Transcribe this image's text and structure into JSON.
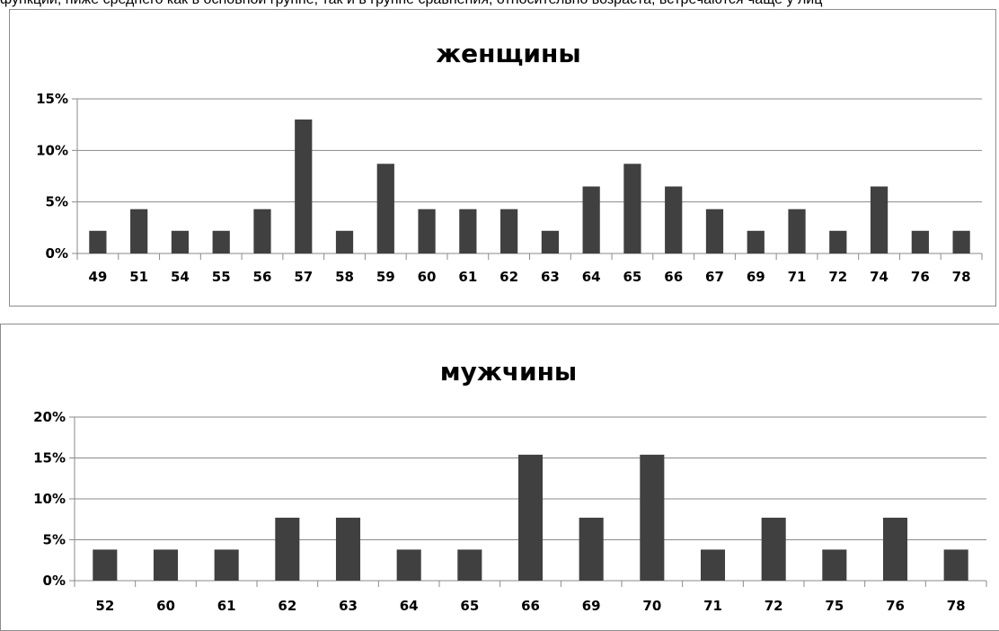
{
  "page": {
    "top_text": "функций, ниже среднего как в основной группе, так и в группе сравнения, относительно возраста, встречаются чаще у лиц"
  },
  "chart_data": [
    {
      "type": "bar",
      "title": "женщины",
      "xlabel": "",
      "ylabel": "",
      "ylim": [
        0,
        15
      ],
      "yticks": [
        "0%",
        "5%",
        "10%",
        "15%"
      ],
      "ytick_values": [
        0,
        5,
        10,
        15
      ],
      "grid": true,
      "categories": [
        "49",
        "51",
        "54",
        "55",
        "56",
        "57",
        "58",
        "59",
        "60",
        "61",
        "62",
        "63",
        "64",
        "65",
        "66",
        "67",
        "69",
        "71",
        "72",
        "74",
        "76",
        "78"
      ],
      "values": [
        2.2,
        4.3,
        2.2,
        2.2,
        4.3,
        13.0,
        2.2,
        8.7,
        4.3,
        4.3,
        4.3,
        2.2,
        6.5,
        8.7,
        6.5,
        4.3,
        2.2,
        4.3,
        2.2,
        6.5,
        2.2,
        2.2
      ],
      "bar_color": "#404040"
    },
    {
      "type": "bar",
      "title": "мужчины",
      "xlabel": "",
      "ylabel": "",
      "ylim": [
        0,
        20
      ],
      "yticks": [
        "0%",
        "5%",
        "10%",
        "15%",
        "20%"
      ],
      "ytick_values": [
        0,
        5,
        10,
        15,
        20
      ],
      "grid": true,
      "categories": [
        "52",
        "60",
        "61",
        "62",
        "63",
        "64",
        "65",
        "66",
        "69",
        "70",
        "71",
        "72",
        "75",
        "76",
        "78"
      ],
      "values": [
        3.8,
        3.8,
        3.8,
        7.7,
        7.7,
        3.8,
        3.8,
        15.4,
        7.7,
        15.4,
        3.8,
        7.7,
        3.8,
        7.7,
        3.8
      ],
      "bar_color": "#404040"
    }
  ]
}
